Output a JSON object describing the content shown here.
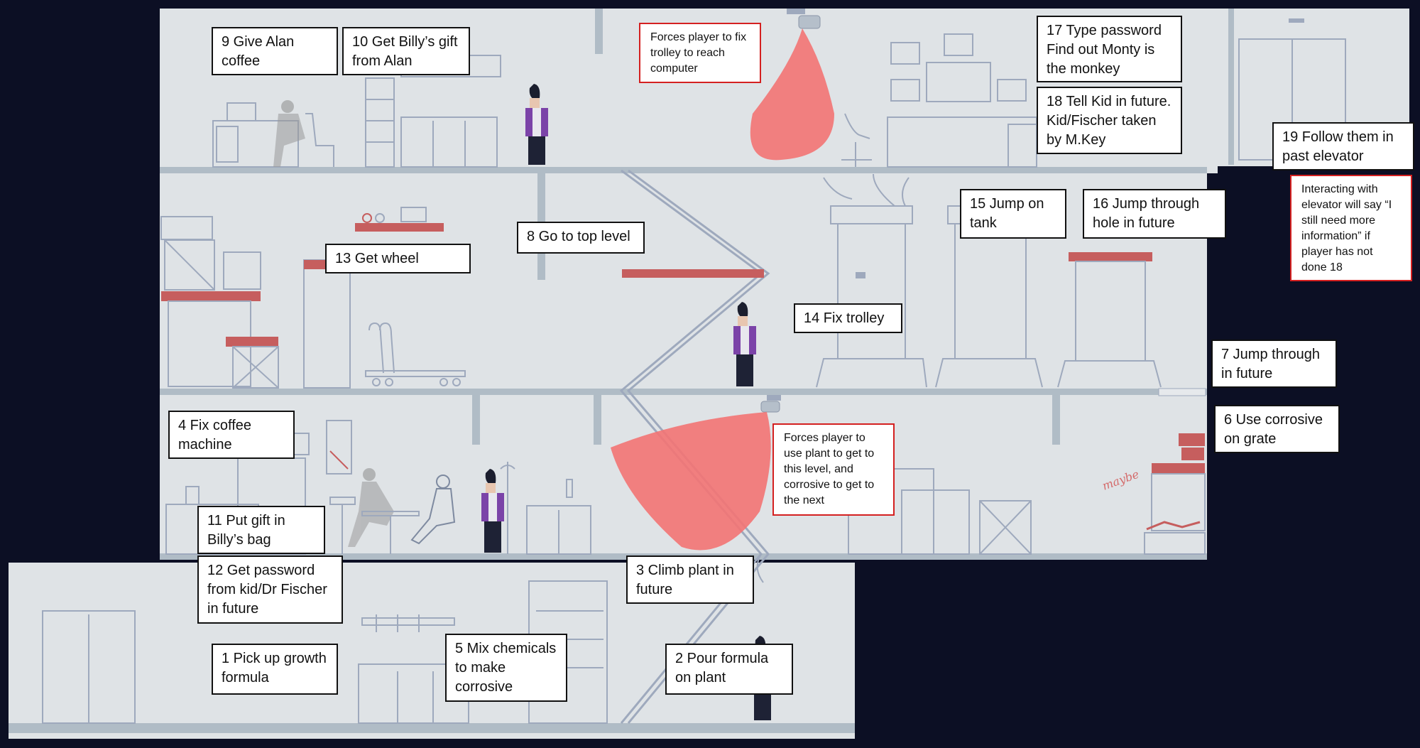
{
  "colors": {
    "background": "#0c0f24",
    "floor": "#dfe3e6",
    "slab": "#b0bcc6",
    "accent_red": "#c65e5e",
    "camera_light": "#f37373",
    "note_border": "#111111",
    "annotation_border": "#d42020",
    "character_jacket": "#7b43a8"
  },
  "steps": {
    "s1": "1 Pick up growth formula",
    "s2": "2 Pour formula on plant",
    "s3": "3 Climb plant in future",
    "s4": "4 Fix coffee machine",
    "s5": "5 Mix chemicals to make corrosive",
    "s6": "6 Use corrosive on grate",
    "s7": "7 Jump through in future",
    "s8": "8 Go to top level",
    "s9": "9 Give Alan coffee",
    "s10": "10 Get Billy’s gift from Alan",
    "s11": "11 Put gift in Billy’s bag",
    "s12": "12 Get password from kid/Dr Fischer in future",
    "s13": "13 Get wheel",
    "s14": "14 Fix trolley",
    "s15": "15 Jump on tank",
    "s16": "16 Jump through hole in future",
    "s17": "17 Type password Find out Monty is the monkey",
    "s18": "18 Tell Kid in future. Kid/Fischer taken by M.Key",
    "s19": "19 Follow them in past elevator"
  },
  "annotations": {
    "trolley_note": "Forces player to fix trolley to reach computer",
    "plant_note": "Forces player to use plant to get to this level, and corrosive to get to the next",
    "elevator_note": "Interacting with elevator will say “I still need more information” if player has not done 18",
    "scribble": "maybe"
  },
  "icons": {
    "camera_top": "security-camera-icon",
    "camera_mid": "security-camera-icon",
    "player": "player-character-icon"
  }
}
